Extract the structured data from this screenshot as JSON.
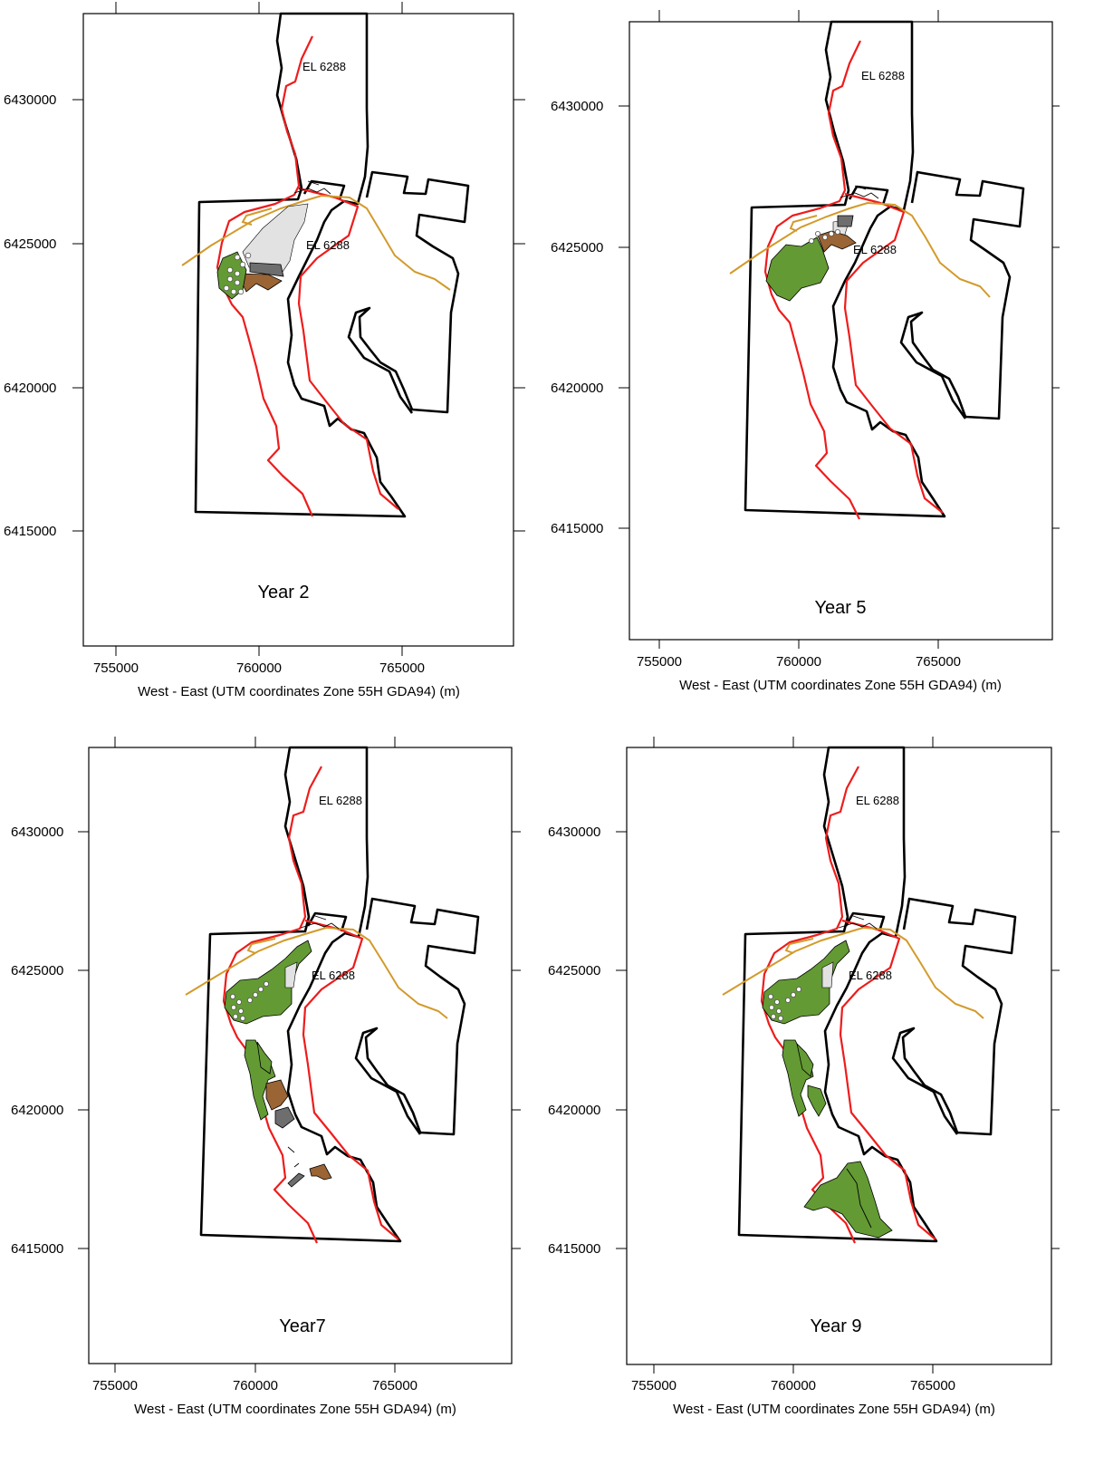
{
  "x_axis": {
    "label": "West - East (UTM coordinates Zone 55H GDA94) (m)",
    "ticks": [
      "755000",
      "760000",
      "765000"
    ]
  },
  "y_axis": {
    "ticks": [
      "6430000",
      "6425000",
      "6420000",
      "6415000"
    ]
  },
  "panels": [
    {
      "title": "Year 2",
      "labels": [
        "EL 6288",
        "EL 6288"
      ]
    },
    {
      "title": "Year 5",
      "labels": [
        "EL 6288",
        "EL 6288"
      ]
    },
    {
      "title": "Year7",
      "labels": [
        "EL 6288",
        "EL 6288"
      ]
    },
    {
      "title": "Year 9",
      "labels": [
        "EL 6288",
        "EL 6288"
      ]
    }
  ],
  "colors": {
    "boundary": "#000000",
    "lease_line": "#ee1c1c",
    "road": "#d39a2b",
    "rehabilitated": "#639a34",
    "topsoil_stockpile": "#9b6434",
    "active_area": "#6e6e6e",
    "disturbed": "#e2e2e2"
  }
}
